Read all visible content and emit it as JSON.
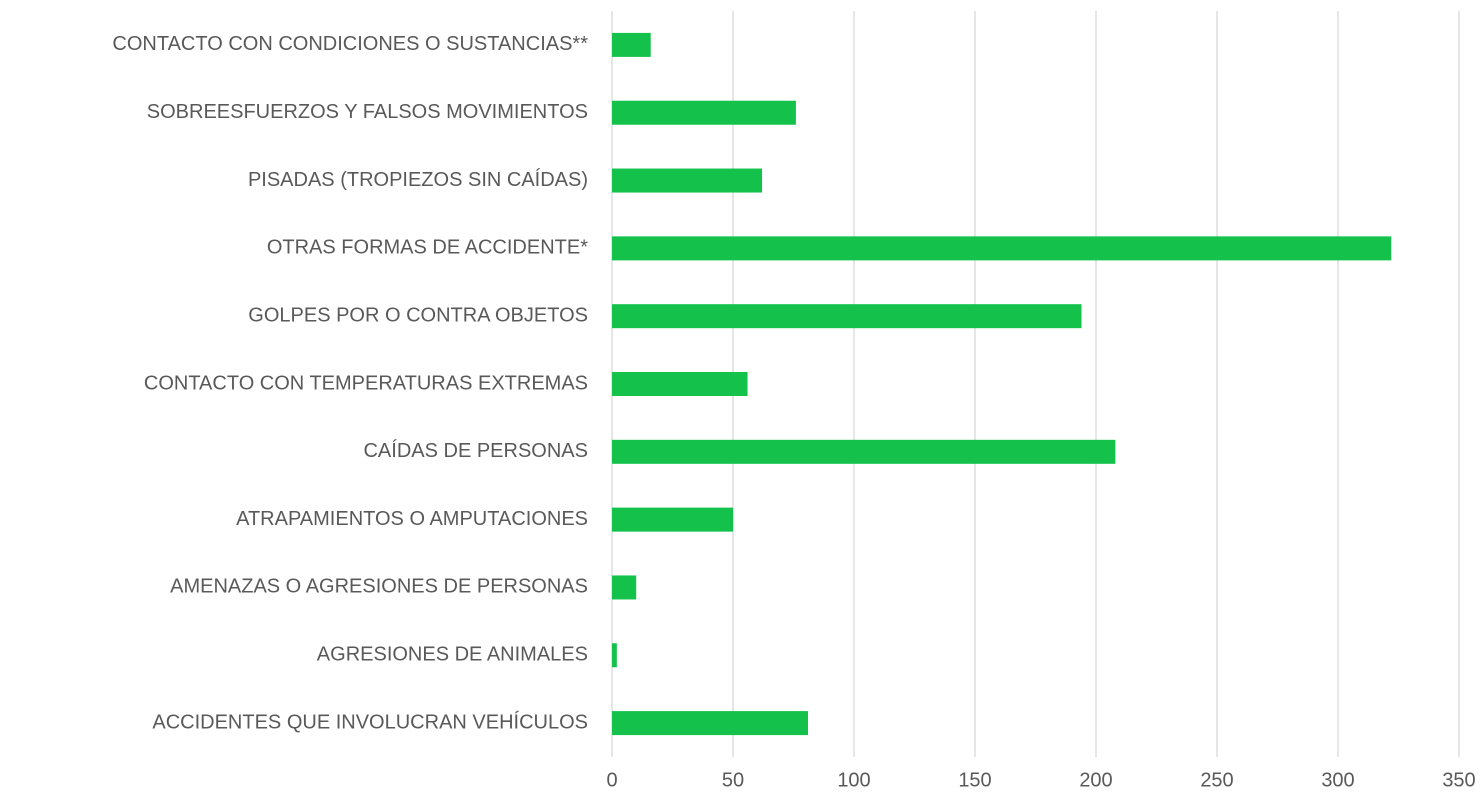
{
  "chart_data": {
    "type": "barh",
    "categories": [
      "CONTACTO CON CONDICIONES O SUSTANCIAS**",
      "SOBREESFUERZOS Y FALSOS MOVIMIENTOS",
      "PISADAS (TROPIEZOS SIN CAÍDAS)",
      "OTRAS FORMAS DE ACCIDENTE*",
      "GOLPES POR O CONTRA OBJETOS",
      "CONTACTO CON TEMPERATURAS EXTREMAS",
      "CAÍDAS DE PERSONAS",
      "ATRAPAMIENTOS O AMPUTACIONES",
      "AMENAZAS O AGRESIONES DE PERSONAS",
      "AGRESIONES DE ANIMALES",
      "ACCIDENTES QUE INVOLUCRAN VEHÍCULOS"
    ],
    "values": [
      16,
      76,
      62,
      322,
      194,
      56,
      208,
      50,
      10,
      2,
      81
    ],
    "color": "#13c14b",
    "xlim": [
      0,
      350
    ],
    "xticks": [
      0,
      50,
      100,
      150,
      200,
      250,
      300,
      350
    ],
    "grid": true
  }
}
